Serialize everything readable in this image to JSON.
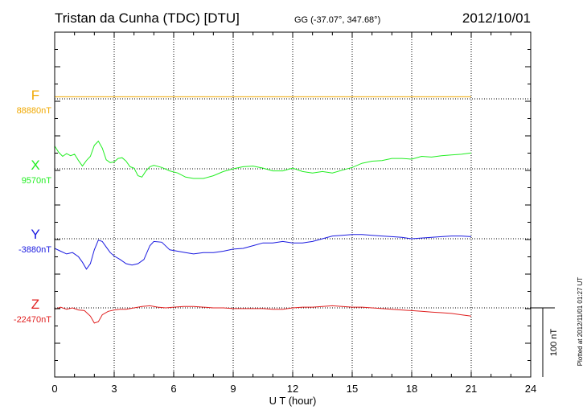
{
  "header": {
    "station": "Tristan da Cunha (TDC)  [DTU]",
    "coords": "GG (-37.07°, 347.68°)",
    "date": "2012/10/01"
  },
  "footer": {
    "plotted": "Plotted at 2012/11/01 01:27 UT"
  },
  "chart_data": {
    "type": "line",
    "xlabel": "U T (hour)",
    "xlim": [
      0,
      24
    ],
    "xticks": [
      "0",
      "3",
      "6",
      "9",
      "12",
      "15",
      "18",
      "21",
      "24"
    ],
    "scale_bar_label": "100 nT",
    "series": [
      {
        "name": "F",
        "baseline_label": "88880nT",
        "color": "#f0a800",
        "x": [
          0,
          3,
          6,
          9,
          12,
          15,
          18,
          21
        ],
        "values": [
          3,
          3,
          3,
          3,
          3,
          3,
          3,
          3
        ]
      },
      {
        "name": "X",
        "baseline_label": "9570nT",
        "color": "#22ee22",
        "x": [
          0,
          0.2,
          0.4,
          0.6,
          0.8,
          1.0,
          1.2,
          1.4,
          1.6,
          1.8,
          2.0,
          2.2,
          2.4,
          2.6,
          2.8,
          3.0,
          3.2,
          3.4,
          3.6,
          3.8,
          4.0,
          4.2,
          4.4,
          4.6,
          4.8,
          5.0,
          5.4,
          5.8,
          6.2,
          6.6,
          7.0,
          7.5,
          8.0,
          8.5,
          9.0,
          9.5,
          10.0,
          10.5,
          11.0,
          11.5,
          12.0,
          12.5,
          13.0,
          13.5,
          14.0,
          14.5,
          15.0,
          15.5,
          16.0,
          16.5,
          17.0,
          17.5,
          18.0,
          18.5,
          19.0,
          19.5,
          20.0,
          20.5,
          21.0
        ],
        "values": [
          33,
          24,
          18,
          22,
          19,
          21,
          12,
          4,
          12,
          18,
          34,
          40,
          30,
          13,
          9,
          10,
          15,
          16,
          11,
          3,
          1,
          -10,
          -12,
          -3,
          3,
          5,
          2,
          -3,
          -6,
          -12,
          -14,
          -14,
          -10,
          -4,
          0,
          3,
          4,
          1,
          -3,
          -3,
          1,
          -4,
          -6,
          -4,
          -6,
          -2,
          2,
          8,
          11,
          12,
          15,
          15,
          14,
          18,
          17,
          19,
          20,
          21,
          23
        ]
      },
      {
        "name": "Y",
        "baseline_label": "-3880nT",
        "color": "#1a1ae0",
        "x": [
          0,
          0.3,
          0.6,
          0.9,
          1.2,
          1.4,
          1.6,
          1.8,
          2.0,
          2.2,
          2.4,
          2.6,
          2.8,
          3.0,
          3.3,
          3.6,
          3.9,
          4.2,
          4.5,
          4.8,
          5.0,
          5.4,
          5.8,
          6.2,
          6.6,
          7.0,
          7.5,
          8.0,
          8.5,
          9.0,
          9.5,
          10.0,
          10.5,
          11.0,
          11.5,
          12.0,
          12.5,
          13.0,
          13.5,
          14.0,
          14.5,
          15.0,
          15.5,
          16.0,
          16.5,
          17.0,
          17.5,
          18.0,
          18.5,
          19.0,
          19.5,
          20.0,
          20.5,
          21.0
        ],
        "values": [
          -14,
          -18,
          -22,
          -20,
          -26,
          -34,
          -44,
          -36,
          -16,
          -2,
          -4,
          -12,
          -20,
          -25,
          -30,
          -36,
          -38,
          -36,
          -30,
          -10,
          -4,
          -5,
          -16,
          -18,
          -20,
          -22,
          -20,
          -20,
          -18,
          -15,
          -14,
          -10,
          -6,
          -6,
          -4,
          -6,
          -6,
          -4,
          0,
          4,
          5,
          6,
          6,
          5,
          4,
          3,
          2,
          0,
          1,
          2,
          3,
          4,
          4,
          3
        ]
      },
      {
        "name": "Z",
        "baseline_label": "-22470nT",
        "color": "#e02020",
        "x": [
          0,
          0.3,
          0.6,
          0.9,
          1.2,
          1.5,
          1.8,
          2.0,
          2.2,
          2.4,
          2.7,
          3.0,
          3.3,
          3.6,
          4.0,
          4.4,
          4.8,
          5.2,
          5.6,
          6.0,
          6.5,
          7.0,
          7.5,
          8.0,
          8.5,
          9.0,
          9.5,
          10.0,
          10.5,
          11.0,
          11.5,
          12.0,
          12.5,
          13.0,
          13.5,
          14.0,
          14.5,
          15.0,
          15.5,
          16.0,
          16.5,
          17.0,
          17.5,
          18.0,
          18.5,
          19.0,
          19.5,
          20.0,
          20.5,
          21.0
        ],
        "values": [
          -2,
          1,
          -2,
          0,
          -3,
          -4,
          -12,
          -22,
          -20,
          -10,
          -5,
          -3,
          -2,
          -2,
          0,
          2,
          3,
          1,
          0,
          1,
          2,
          2,
          1,
          0,
          0,
          -1,
          -1,
          -1,
          -1,
          -2,
          -2,
          0,
          1,
          1,
          2,
          3,
          2,
          1,
          1,
          0,
          -1,
          -2,
          -3,
          -4,
          -5,
          -6,
          -7,
          -8,
          -10,
          -12
        ]
      }
    ]
  }
}
